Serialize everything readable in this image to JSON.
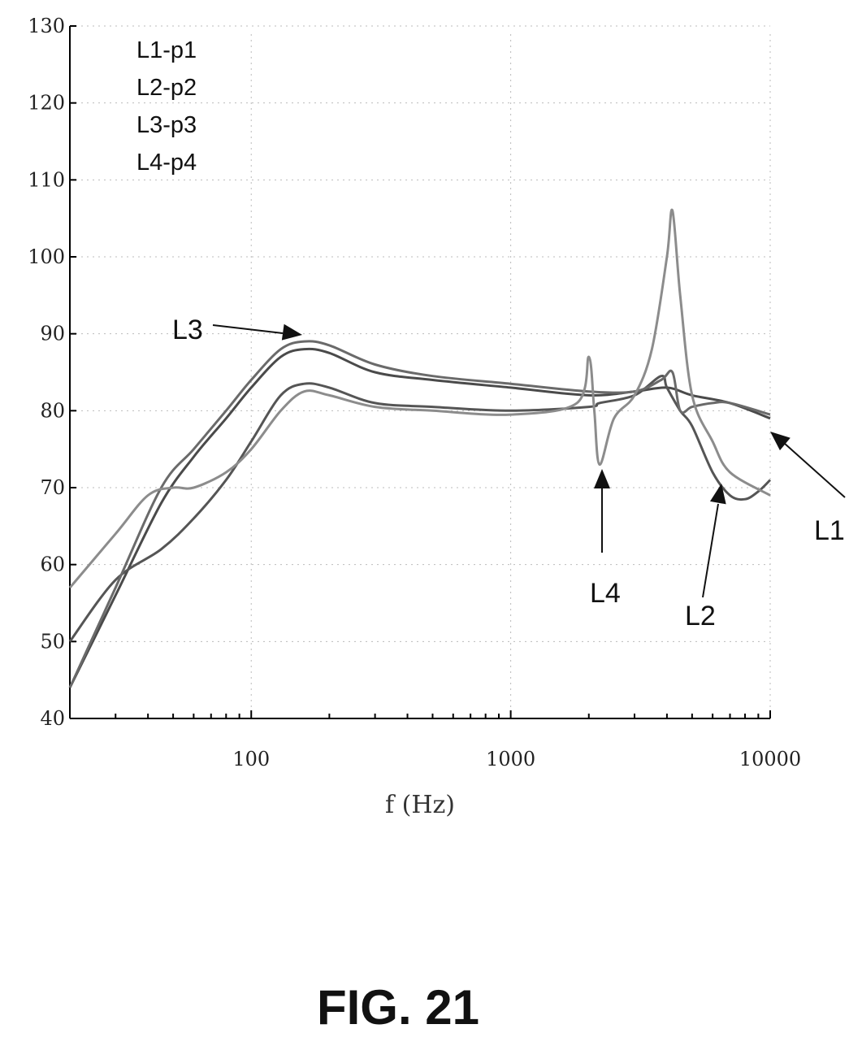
{
  "chart_data": {
    "type": "line",
    "xlabel": "f (Hz)",
    "x_scale": "log",
    "xlim": [
      20,
      10000
    ],
    "ylim": [
      40,
      130
    ],
    "x_ticks": [
      100,
      1000,
      10000
    ],
    "x_tick_labels": [
      "100",
      "1000",
      "10000"
    ],
    "y_ticks": [
      40,
      50,
      60,
      70,
      80,
      90,
      100,
      110,
      120,
      130
    ],
    "y_tick_labels": [
      "40",
      "50",
      "60",
      "70",
      "80",
      "90",
      "100",
      "110",
      "120",
      "130"
    ],
    "grid": true,
    "legend_placement": "top-left",
    "legend": [
      "L1-p1",
      "L2-p2",
      "L3-p3",
      "L4-p4"
    ],
    "series": [
      {
        "name": "L1",
        "color": "#4a4a4a",
        "x": [
          20,
          30,
          45,
          60,
          80,
          100,
          130,
          160,
          200,
          300,
          500,
          1000,
          2000,
          3000,
          4000,
          5000,
          7000,
          10000
        ],
        "y": [
          44,
          56,
          68,
          74,
          79,
          83,
          87,
          88,
          87.5,
          85,
          84,
          83,
          82,
          82.5,
          83,
          82,
          81,
          79
        ]
      },
      {
        "name": "L2",
        "color": "#555555",
        "x": [
          20,
          30,
          45,
          60,
          80,
          100,
          130,
          160,
          200,
          300,
          500,
          1000,
          2000,
          2200,
          3000,
          3800,
          4000,
          4500,
          5000,
          6000,
          7000,
          8000,
          9000,
          10000
        ],
        "y": [
          50,
          58,
          62,
          66,
          71,
          76,
          82,
          83.5,
          83,
          81,
          80.5,
          80,
          80.5,
          81,
          82,
          84.5,
          83,
          80,
          78,
          72,
          69,
          68.5,
          69.5,
          71
        ]
      },
      {
        "name": "L3",
        "color": "#6a6a6a",
        "x": [
          20,
          30,
          45,
          60,
          80,
          100,
          130,
          160,
          200,
          300,
          500,
          1000,
          2000,
          3000,
          3800,
          4200,
          4500,
          5000,
          6000,
          7000,
          10000
        ],
        "y": [
          44,
          57,
          70,
          75,
          80,
          84,
          88,
          89,
          88.5,
          86,
          84.5,
          83.5,
          82.5,
          82.5,
          84,
          85,
          80,
          80.5,
          81,
          81,
          79.5
        ]
      },
      {
        "name": "L4",
        "color": "#8c8c8c",
        "x": [
          20,
          30,
          40,
          50,
          60,
          80,
          100,
          130,
          160,
          200,
          300,
          500,
          1000,
          1800,
          2000,
          2100,
          2200,
          2500,
          3000,
          3500,
          4000,
          4200,
          4500,
          5000,
          6000,
          7000,
          10000
        ],
        "y": [
          57,
          64,
          69,
          70,
          70,
          72,
          75,
          80,
          82.5,
          82,
          80.5,
          80,
          79.5,
          81,
          87,
          80,
          73,
          79,
          82,
          88,
          100,
          106,
          95,
          82,
          76,
          72,
          69
        ]
      }
    ],
    "annotations": [
      {
        "text": "L3",
        "target_series": "L3"
      },
      {
        "text": "L4",
        "target_series": "L4"
      },
      {
        "text": "L2",
        "target_series": "L2"
      },
      {
        "text": "L1",
        "target_series": "L1"
      }
    ],
    "caption": "FIG. 21"
  }
}
